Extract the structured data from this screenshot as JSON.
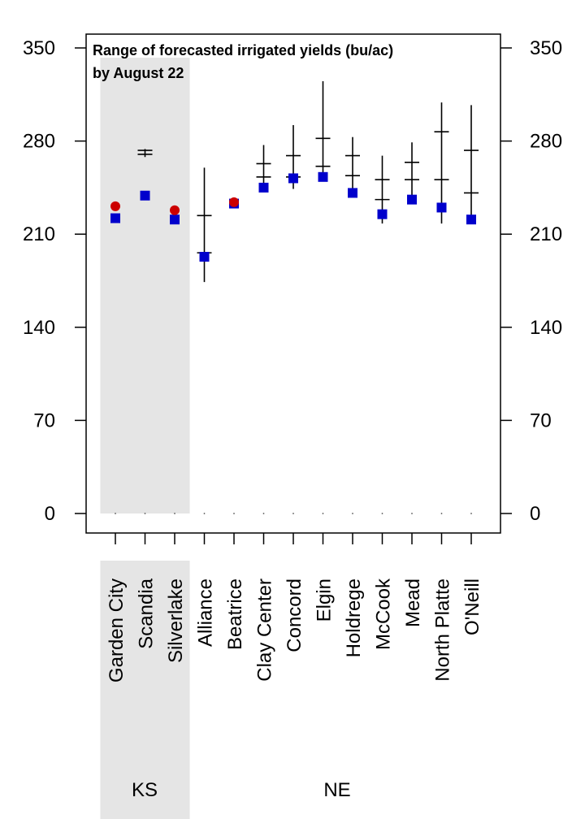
{
  "chart_data": {
    "type": "scatter",
    "title_lines": [
      "Range of forecasted irrigated yields (bu/ac)",
      "by August 22"
    ],
    "ylim": [
      0,
      350
    ],
    "yticks": [
      "0",
      "70",
      "140",
      "210",
      "280",
      "350"
    ],
    "categories": [
      "Garden City",
      "Scandia",
      "Silverlake",
      "Alliance",
      "Beatrice",
      "Clay Center",
      "Concord",
      "Elgin",
      "Holdrege",
      "McCook",
      "Mead",
      "North Platte",
      "O'Neill"
    ],
    "groups": [
      {
        "label": "KS",
        "count": 3,
        "shaded": true
      },
      {
        "label": "NE",
        "count": 10,
        "shaded": false
      }
    ],
    "colors": {
      "blue_marker": "#0000cc",
      "red_marker": "#cc0000",
      "shade": "#e5e5e5",
      "ink": "#000000"
    },
    "ranges": [
      null,
      {
        "low": 268,
        "high": 274,
        "ticks": [
          270,
          273
        ]
      },
      null,
      {
        "low": 174,
        "high": 260,
        "ticks": [
          196,
          224
        ]
      },
      {
        "low": 230,
        "high": 236,
        "ticks": []
      },
      {
        "low": 244,
        "high": 277,
        "ticks": [
          253,
          263
        ]
      },
      {
        "low": 244,
        "high": 292,
        "ticks": [
          253,
          269
        ]
      },
      {
        "low": 250,
        "high": 325,
        "ticks": [
          261,
          282
        ]
      },
      {
        "low": 240,
        "high": 283,
        "ticks": [
          254,
          269
        ]
      },
      {
        "low": 218,
        "high": 269,
        "ticks": [
          236,
          251
        ]
      },
      {
        "low": 236,
        "high": 279,
        "ticks": [
          251,
          264
        ]
      },
      {
        "low": 218,
        "high": 309,
        "ticks": [
          251,
          287
        ]
      },
      {
        "low": 219,
        "high": 307,
        "ticks": [
          241,
          273
        ]
      }
    ],
    "series": [
      {
        "name": "blue squares",
        "color": "#0000cc",
        "marker": "square",
        "values": [
          222,
          239,
          221,
          193,
          233,
          245,
          252,
          253,
          241,
          225,
          236,
          230,
          221
        ]
      },
      {
        "name": "red circles",
        "color": "#cc0000",
        "marker": "circle",
        "values": [
          231,
          null,
          228,
          null,
          234,
          null,
          null,
          null,
          null,
          null,
          null,
          null,
          null
        ]
      }
    ]
  }
}
